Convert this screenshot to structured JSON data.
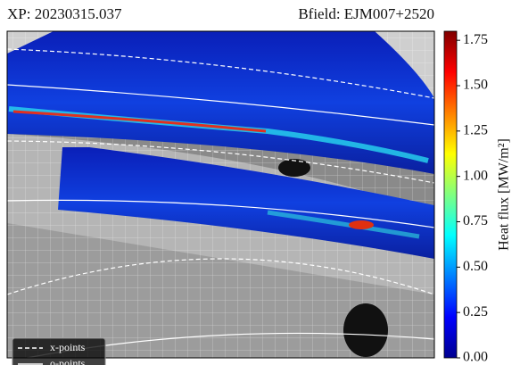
{
  "chart_data": {
    "type": "image",
    "title_left": "XP: 20230315.037",
    "title_right": "Bfield: EJM007+2520",
    "colorbar": {
      "label": "Heat flux [MW/m²]",
      "zlim": [
        0,
        1.8
      ],
      "zticks": [
        {
          "value": 0,
          "label": "0.00"
        },
        0.25,
        {
          "value": 0.5,
          "label": "0.50"
        },
        0.75,
        {
          "value": 1,
          "label": "1.00"
        },
        1.25,
        {
          "value": 1.5,
          "label": "1.50"
        },
        1.75
      ],
      "colormap": "jet"
    },
    "legend": [
      {
        "name": "x-points",
        "style": "dashed"
      },
      {
        "name": "o-points",
        "style": "solid"
      }
    ]
  }
}
